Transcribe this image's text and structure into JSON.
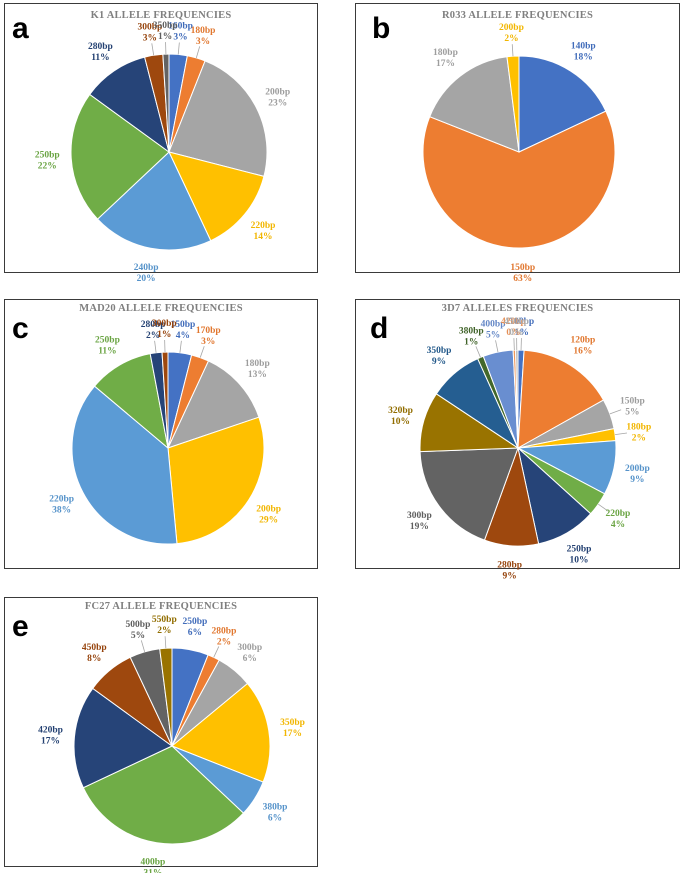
{
  "chart_data": [
    {
      "panel": "a",
      "type": "pie",
      "title": "K1 ALLELE FREQUENCIES",
      "slices": [
        {
          "label": "160bp",
          "pct": "3%",
          "value": 3,
          "color": "#4472C4"
        },
        {
          "label": "180bp",
          "pct": "3%",
          "value": 3,
          "color": "#ED7D31"
        },
        {
          "label": "200bp",
          "pct": "23%",
          "value": 23,
          "color": "#A5A5A5"
        },
        {
          "label": "220bp",
          "pct": "14%",
          "value": 14,
          "color": "#FFC000"
        },
        {
          "label": "240bp",
          "pct": "20%",
          "value": 20,
          "color": "#5B9BD5"
        },
        {
          "label": "250bp",
          "pct": "22%",
          "value": 22,
          "color": "#70AD47"
        },
        {
          "label": "280bp",
          "pct": "11%",
          "value": 11,
          "color": "#264478"
        },
        {
          "label": "300bp",
          "pct": "3%",
          "value": 3,
          "color": "#9E480E"
        },
        {
          "label": "350bp",
          "pct": "1%",
          "value": 1,
          "color": "#636363"
        }
      ]
    },
    {
      "panel": "b",
      "type": "pie",
      "title": "R033 ALLELE FREQUENCIES",
      "slices": [
        {
          "label": "140bp",
          "pct": "18%",
          "value": 18,
          "color": "#4472C4"
        },
        {
          "label": "150bp",
          "pct": "63%",
          "value": 63,
          "color": "#ED7D31"
        },
        {
          "label": "180bp",
          "pct": "17%",
          "value": 17,
          "color": "#A5A5A5"
        },
        {
          "label": "200bp",
          "pct": "2%",
          "value": 2,
          "color": "#FFC000"
        }
      ]
    },
    {
      "panel": "c",
      "type": "pie",
      "title": "MAD20 ALLELE FREQUENCIES",
      "slices": [
        {
          "label": "150bp",
          "pct": "4%",
          "value": 4,
          "color": "#4472C4"
        },
        {
          "label": "170bp",
          "pct": "3%",
          "value": 3,
          "color": "#ED7D31"
        },
        {
          "label": "180bp",
          "pct": "13%",
          "value": 13,
          "color": "#A5A5A5"
        },
        {
          "label": "200bp",
          "pct": "29%",
          "value": 29,
          "color": "#FFC000"
        },
        {
          "label": "220bp",
          "pct": "38%",
          "value": 38,
          "color": "#5B9BD5"
        },
        {
          "label": "250bp",
          "pct": "11%",
          "value": 11,
          "color": "#70AD47"
        },
        {
          "label": "280bp",
          "pct": "2%",
          "value": 2,
          "color": "#264478"
        },
        {
          "label": "300bp",
          "pct": "1%",
          "value": 1,
          "color": "#9E480E"
        }
      ]
    },
    {
      "panel": "d",
      "type": "pie",
      "title": "3D7 ALLELES FREQUENCIES",
      "slices": [
        {
          "label": "100bp",
          "pct": "1%",
          "value": 1,
          "color": "#4472C4"
        },
        {
          "label": "120bp",
          "pct": "16%",
          "value": 16,
          "color": "#ED7D31"
        },
        {
          "label": "150bp",
          "pct": "5%",
          "value": 5,
          "color": "#A5A5A5"
        },
        {
          "label": "180bp",
          "pct": "2%",
          "value": 2,
          "color": "#FFC000"
        },
        {
          "label": "200bp",
          "pct": "9%",
          "value": 9,
          "color": "#5B9BD5"
        },
        {
          "label": "220bp",
          "pct": "4%",
          "value": 4,
          "color": "#70AD47"
        },
        {
          "label": "250bp",
          "pct": "10%",
          "value": 10,
          "color": "#264478"
        },
        {
          "label": "280bp",
          "pct": "9%",
          "value": 9,
          "color": "#9E480E"
        },
        {
          "label": "300bp",
          "pct": "19%",
          "value": 19,
          "color": "#636363"
        },
        {
          "label": "320bp",
          "pct": "10%",
          "value": 10,
          "color": "#997300"
        },
        {
          "label": "350bp",
          "pct": "9%",
          "value": 9,
          "color": "#255E91"
        },
        {
          "label": "380bp",
          "pct": "1%",
          "value": 1,
          "color": "#43682B"
        },
        {
          "label": "400bp",
          "pct": "5%",
          "value": 5,
          "color": "#698ED0"
        },
        {
          "label": "420bp",
          "pct": "0%",
          "value": 0.4,
          "color": "#F1975A"
        },
        {
          "label": "450bp",
          "pct": "0%",
          "value": 0.4,
          "color": "#B7B7B7"
        }
      ]
    },
    {
      "panel": "e",
      "type": "pie",
      "title": "FC27 ALLELE FREQUENCIES",
      "slices": [
        {
          "label": "250bp",
          "pct": "6%",
          "value": 6,
          "color": "#4472C4"
        },
        {
          "label": "280bp",
          "pct": "2%",
          "value": 2,
          "color": "#ED7D31"
        },
        {
          "label": "300bp",
          "pct": "6%",
          "value": 6,
          "color": "#A5A5A5"
        },
        {
          "label": "350bp",
          "pct": "17%",
          "value": 17,
          "color": "#FFC000"
        },
        {
          "label": "380bp",
          "pct": "6%",
          "value": 6,
          "color": "#5B9BD5"
        },
        {
          "label": "400bp",
          "pct": "31%",
          "value": 31,
          "color": "#70AD47"
        },
        {
          "label": "420bp",
          "pct": "17%",
          "value": 17,
          "color": "#264478"
        },
        {
          "label": "450bp",
          "pct": "8%",
          "value": 8,
          "color": "#9E480E"
        },
        {
          "label": "500bp",
          "pct": "5%",
          "value": 5,
          "color": "#636363"
        },
        {
          "label": "550bp",
          "pct": "2%",
          "value": 2,
          "color": "#997300"
        }
      ]
    }
  ]
}
